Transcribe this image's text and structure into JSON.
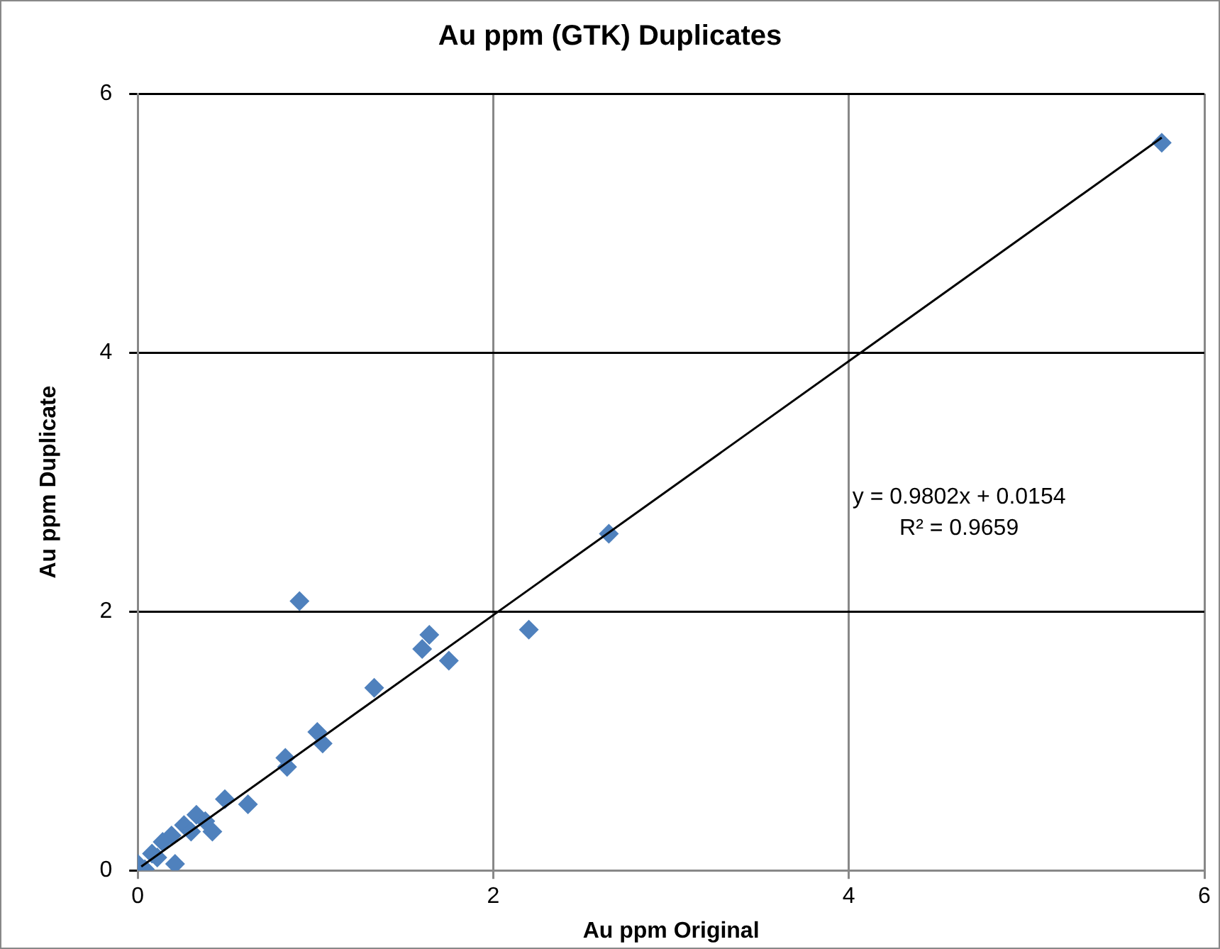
{
  "chart_data": {
    "type": "scatter",
    "title": "Au ppm (GTK) Duplicates",
    "xlabel": "Au ppm Original",
    "ylabel": "Au ppm Duplicate",
    "xlim": [
      0,
      6
    ],
    "ylim": [
      0,
      6
    ],
    "xticks": [
      0,
      2,
      4,
      6
    ],
    "yticks": [
      0,
      2,
      4,
      6
    ],
    "grid": true,
    "legend": false,
    "marker": "diamond",
    "series": [
      {
        "color": "#4f81bd",
        "x": [
          5.76,
          2.65,
          2.2,
          1.75,
          1.64,
          1.6,
          1.33,
          0.91,
          1.04,
          1.01,
          0.84,
          0.83,
          0.62,
          0.49,
          0.42,
          0.33,
          0.26,
          0.19,
          0.14,
          0.21,
          0.08,
          0.0,
          0.04,
          0.11,
          0.3,
          0.38
        ],
        "values": [
          5.62,
          2.6,
          1.86,
          1.62,
          1.82,
          1.71,
          1.41,
          2.08,
          0.98,
          1.07,
          0.8,
          0.87,
          0.51,
          0.55,
          0.3,
          0.43,
          0.35,
          0.27,
          0.22,
          0.05,
          0.13,
          0.05,
          0.01,
          0.1,
          0.3,
          0.38
        ]
      },
      {
        "type": "line",
        "color": "#000000",
        "marker": "none",
        "x": [
          0.02,
          5.76
        ],
        "values": [
          0.03,
          5.66
        ]
      }
    ],
    "annotations": [
      "y = 0.9802x + 0.0154",
      "R² = 0.9659"
    ]
  }
}
